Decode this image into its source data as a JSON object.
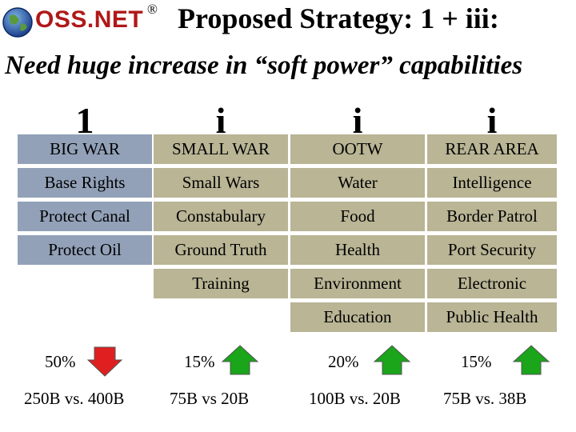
{
  "header": {
    "logo_text": "OSS.NET",
    "registered_mark": "®",
    "title": "Proposed Strategy: 1 + iii:",
    "subtitle": "Need huge increase in “soft power” capabilities"
  },
  "columns": [
    {
      "heading": "1",
      "cells": [
        "BIG WAR",
        "Base Rights",
        "Protect Canal",
        "Protect Oil"
      ],
      "percent": "50%",
      "trend": "down",
      "cost": "250B vs. 400B"
    },
    {
      "heading": "i",
      "cells": [
        "SMALL WAR",
        "Small Wars",
        "Constabulary",
        "Ground Truth",
        "Training"
      ],
      "percent": "15%",
      "trend": "up",
      "cost": "75B vs 20B"
    },
    {
      "heading": "i",
      "cells": [
        "OOTW",
        "Water",
        "Food",
        "Health",
        "Environment",
        "Education"
      ],
      "percent": "20%",
      "trend": "up",
      "cost": "100B vs. 20B"
    },
    {
      "heading": "i",
      "cells": [
        "REAR AREA",
        "Intelligence",
        "Border Patrol",
        "Port Security",
        "Electronic",
        "Public Health"
      ],
      "percent": "15%",
      "trend": "up",
      "cost": "75B vs. 38B"
    }
  ],
  "colors": {
    "col1_bg": "#92a1b8",
    "col_other_bg": "#b9b595",
    "arrow_down": "#e02020",
    "arrow_up": "#1aa51a",
    "logo_red": "#b01818"
  }
}
